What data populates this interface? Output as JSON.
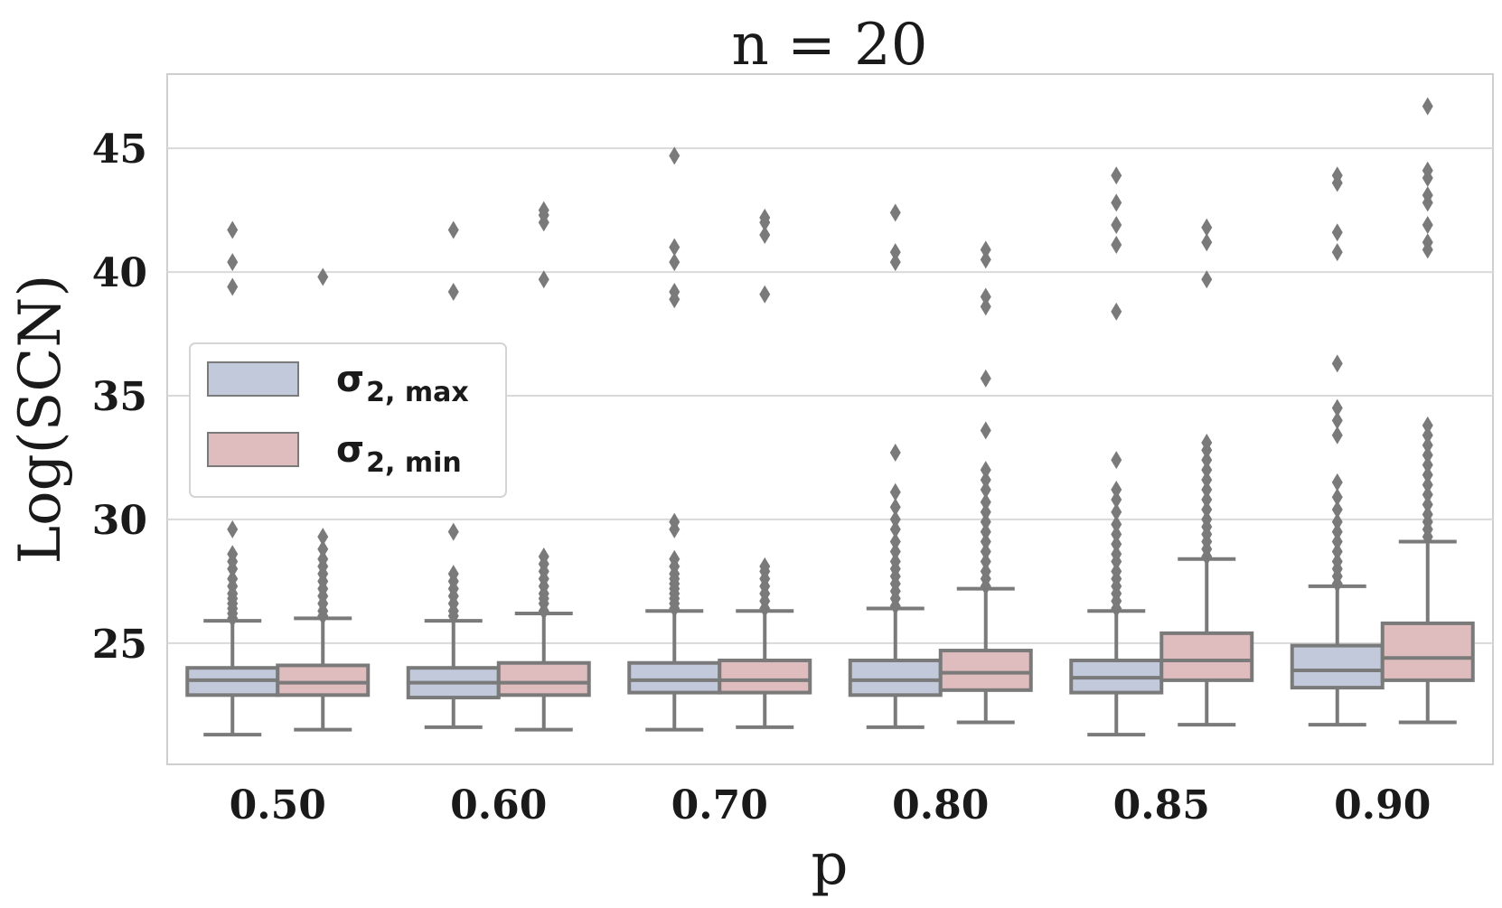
{
  "chart_data": {
    "type": "box",
    "title": "n = 20",
    "xlabel": "p",
    "ylabel": "Log(SCN)",
    "categories": [
      "0.50",
      "0.60",
      "0.70",
      "0.80",
      "0.85",
      "0.90"
    ],
    "yticks": [
      25,
      30,
      35,
      40,
      45
    ],
    "ylim": [
      20.1,
      48.0
    ],
    "grid": true,
    "legend_position": "center-left",
    "series": [
      {
        "name": "σ2,max",
        "legend_main": "σ",
        "legend_sub": "2, max",
        "color": "#c1c9db",
        "boxes": [
          {
            "whislo": 21.3,
            "q1": 22.9,
            "med": 23.5,
            "q3": 24.0,
            "whishi": 25.9,
            "fliers": [
              26.0,
              26.2,
              26.4,
              26.6,
              26.8,
              27.0,
              27.3,
              27.6,
              28.0,
              28.3,
              28.6,
              29.6,
              39.4,
              40.4,
              41.7
            ]
          },
          {
            "whislo": 21.6,
            "q1": 22.8,
            "med": 23.4,
            "q3": 24.0,
            "whishi": 25.9,
            "fliers": [
              26.1,
              26.3,
              26.6,
              26.9,
              27.2,
              27.5,
              27.8,
              29.5,
              39.2,
              41.7
            ]
          },
          {
            "whislo": 21.5,
            "q1": 23.0,
            "med": 23.5,
            "q3": 24.2,
            "whishi": 26.3,
            "fliers": [
              26.4,
              26.6,
              26.8,
              27.0,
              27.2,
              27.4,
              27.6,
              27.8,
              28.1,
              28.4,
              29.6,
              29.9,
              38.9,
              39.2,
              40.4,
              41.0,
              44.7
            ]
          },
          {
            "whislo": 21.6,
            "q1": 22.9,
            "med": 23.5,
            "q3": 24.3,
            "whishi": 26.4,
            "fliers": [
              26.5,
              26.8,
              27.1,
              27.4,
              27.7,
              28.0,
              28.3,
              28.7,
              29.1,
              29.6,
              30.0,
              30.5,
              31.1,
              32.7,
              40.4,
              40.8,
              42.4
            ]
          },
          {
            "whislo": 21.3,
            "q1": 23.0,
            "med": 23.6,
            "q3": 24.3,
            "whishi": 26.3,
            "fliers": [
              26.4,
              26.7,
              27.0,
              27.3,
              27.6,
              27.9,
              28.3,
              28.6,
              29.0,
              29.4,
              29.8,
              30.3,
              30.8,
              31.2,
              32.4,
              38.4,
              41.1,
              41.9,
              42.8,
              43.9
            ]
          },
          {
            "whislo": 21.7,
            "q1": 23.2,
            "med": 23.9,
            "q3": 24.9,
            "whishi": 27.3,
            "fliers": [
              27.4,
              27.7,
              28.0,
              28.3,
              28.7,
              29.1,
              29.5,
              29.9,
              30.4,
              30.9,
              31.5,
              33.4,
              34.0,
              34.5,
              36.3,
              40.8,
              41.6,
              43.6,
              43.9
            ]
          }
        ]
      },
      {
        "name": "σ2,min",
        "legend_main": "σ",
        "legend_sub": "2, min",
        "color": "#dfbcbd",
        "boxes": [
          {
            "whislo": 21.5,
            "q1": 22.9,
            "med": 23.4,
            "q3": 24.1,
            "whishi": 26.0,
            "fliers": [
              26.1,
              26.3,
              26.6,
              26.9,
              27.2,
              27.5,
              27.8,
              28.1,
              28.4,
              28.8,
              29.3,
              39.8
            ]
          },
          {
            "whislo": 21.5,
            "q1": 22.9,
            "med": 23.4,
            "q3": 24.2,
            "whishi": 26.2,
            "fliers": [
              26.3,
              26.6,
              26.8,
              27.0,
              27.3,
              27.6,
              27.9,
              28.2,
              28.5,
              39.7,
              42.0,
              42.3,
              42.5
            ]
          },
          {
            "whislo": 21.6,
            "q1": 23.0,
            "med": 23.5,
            "q3": 24.3,
            "whishi": 26.3,
            "fliers": [
              26.4,
              26.7,
              27.0,
              27.3,
              27.6,
              27.9,
              28.1,
              39.1,
              41.5,
              42.0,
              42.2
            ]
          },
          {
            "whislo": 21.8,
            "q1": 23.1,
            "med": 23.8,
            "q3": 24.7,
            "whishi": 27.2,
            "fliers": [
              27.3,
              27.6,
              27.9,
              28.3,
              28.7,
              29.1,
              29.5,
              29.9,
              30.3,
              30.7,
              31.2,
              31.6,
              32.0,
              33.6,
              35.7,
              38.6,
              39.0,
              40.5,
              40.9
            ]
          },
          {
            "whislo": 21.7,
            "q1": 23.5,
            "med": 24.3,
            "q3": 25.4,
            "whishi": 28.4,
            "fliers": [
              28.5,
              28.8,
              29.1,
              29.4,
              29.7,
              30.0,
              30.4,
              30.8,
              31.2,
              31.6,
              32.0,
              32.4,
              32.8,
              33.1,
              39.7,
              41.2,
              41.8
            ]
          },
          {
            "whislo": 21.8,
            "q1": 23.5,
            "med": 24.4,
            "q3": 25.8,
            "whishi": 29.1,
            "fliers": [
              29.3,
              29.6,
              29.9,
              30.2,
              30.6,
              31.0,
              31.4,
              31.8,
              32.2,
              32.6,
              33.0,
              33.4,
              33.8,
              40.9,
              41.2,
              41.9,
              42.8,
              43.1,
              43.8,
              44.1,
              46.7
            ]
          }
        ]
      }
    ]
  }
}
